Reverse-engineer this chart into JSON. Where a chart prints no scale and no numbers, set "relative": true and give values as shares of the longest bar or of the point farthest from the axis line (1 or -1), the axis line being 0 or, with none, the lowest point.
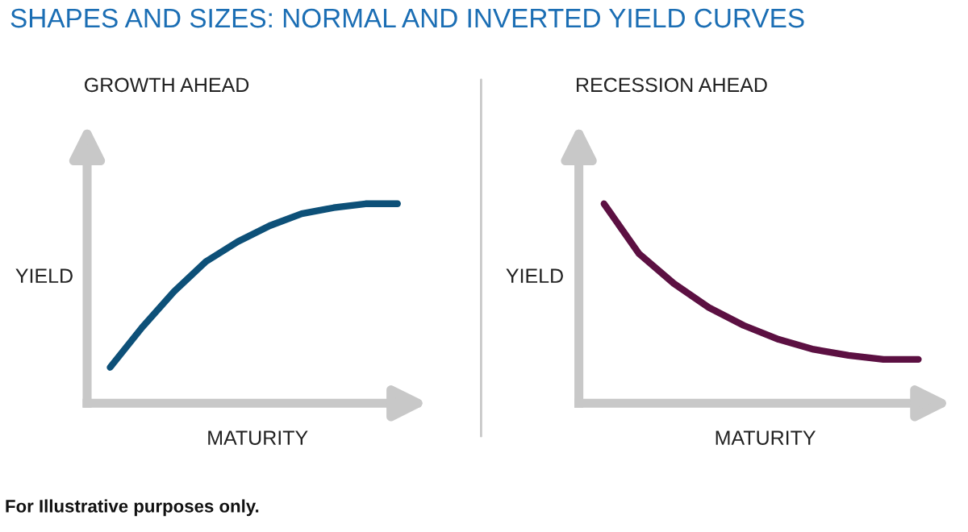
{
  "chart_data": [
    {
      "type": "line",
      "title": "SHAPES AND SIZES: NORMAL AND INVERTED YIELD CURVES",
      "subtitle": "GROWTH AHEAD",
      "xlabel": "MATURITY",
      "ylabel": "YIELD",
      "relative": true,
      "categories": [
        null,
        null,
        null,
        null,
        null,
        null,
        null,
        null,
        null,
        null
      ],
      "series": [
        {
          "color": "#0d5078",
          "values": [
            0.18,
            0.38,
            0.56,
            0.71,
            0.81,
            0.89,
            0.95,
            0.98,
            1,
            1
          ]
        }
      ],
      "legend": false,
      "annotations": [
        "For Illustrative purposes only."
      ]
    },
    {
      "type": "line",
      "subtitle": "RECESSION AHEAD",
      "xlabel": "MATURITY",
      "ylabel": "YIELD",
      "relative": true,
      "categories": [
        null,
        null,
        null,
        null,
        null,
        null,
        null,
        null,
        null,
        null
      ],
      "series": [
        {
          "color": "#5c1042",
          "values": [
            1,
            0.75,
            0.6,
            0.48,
            0.39,
            0.32,
            0.27,
            0.24,
            0.22,
            0.22
          ]
        }
      ],
      "legend": false
    }
  ]
}
